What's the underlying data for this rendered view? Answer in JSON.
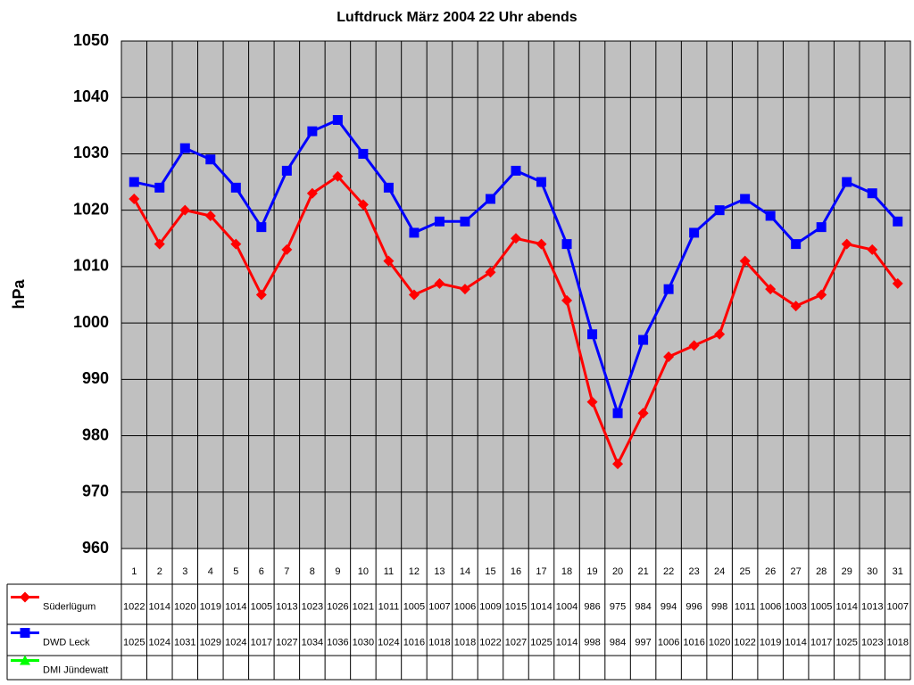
{
  "chart_data": {
    "type": "line",
    "title": "Luftdruck März 2004 22 Uhr abends",
    "y_label": "hPa",
    "categories": [
      "1",
      "2",
      "3",
      "4",
      "5",
      "6",
      "7",
      "8",
      "9",
      "10",
      "11",
      "12",
      "13",
      "14",
      "15",
      "16",
      "17",
      "18",
      "19",
      "20",
      "21",
      "22",
      "23",
      "24",
      "25",
      "26",
      "27",
      "28",
      "29",
      "30",
      "31"
    ],
    "series": [
      {
        "name": "Süderlügum",
        "color": "#ff0000",
        "marker": "diamond",
        "values": [
          1022,
          1014,
          1020,
          1019,
          1014,
          1005,
          1013,
          1023,
          1026,
          1021,
          1011,
          1005,
          1007,
          1006,
          1009,
          1015,
          1014,
          1004,
          986,
          975,
          984,
          994,
          996,
          998,
          1011,
          1006,
          1003,
          1005,
          1014,
          1013,
          1007
        ]
      },
      {
        "name": "DWD Leck",
        "color": "#0000ff",
        "marker": "square",
        "values": [
          1025,
          1024,
          1031,
          1029,
          1024,
          1017,
          1027,
          1034,
          1036,
          1030,
          1024,
          1016,
          1018,
          1018,
          1022,
          1027,
          1025,
          1014,
          998,
          984,
          997,
          1006,
          1016,
          1020,
          1022,
          1019,
          1014,
          1017,
          1025,
          1023,
          1018
        ]
      },
      {
        "name": "DMI Jündewatt",
        "color": "#00ff00",
        "marker": "triangle",
        "values": [
          null,
          null,
          null,
          null,
          null,
          null,
          null,
          null,
          null,
          null,
          null,
          null,
          null,
          null,
          null,
          null,
          null,
          null,
          null,
          null,
          null,
          null,
          null,
          null,
          null,
          null,
          null,
          null,
          null,
          null,
          null
        ]
      }
    ],
    "ylim": [
      960,
      1050
    ],
    "yticks": [
      960,
      970,
      980,
      990,
      1000,
      1010,
      1020,
      1030,
      1040,
      1050
    ],
    "grid": true,
    "plot_background": "#c0c0c0"
  }
}
